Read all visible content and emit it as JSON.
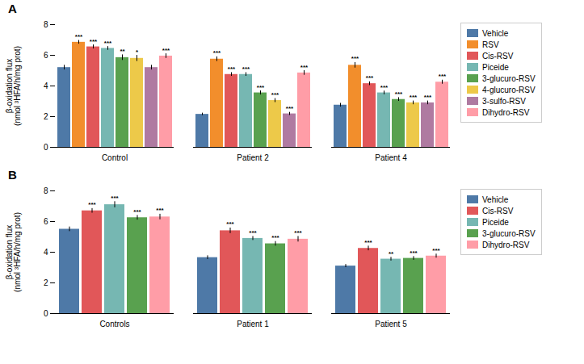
{
  "chart_data": [
    {
      "type": "bar",
      "title": "A",
      "categories": [
        "Control",
        "Patient 2",
        "Patient 4"
      ],
      "series": [
        {
          "name": "Vehicle",
          "values": [
            5.2,
            2.15,
            2.75
          ],
          "errors": [
            0.15,
            0.08,
            0.12
          ],
          "significance": [
            null,
            null,
            null
          ]
        },
        {
          "name": "RSV",
          "values": [
            6.85,
            5.75,
            5.35
          ],
          "errors": [
            0.12,
            0.15,
            0.18
          ],
          "significance": [
            "***",
            "***",
            "***"
          ]
        },
        {
          "name": "Cis-RSV",
          "values": [
            6.55,
            4.75,
            4.15
          ],
          "errors": [
            0.13,
            0.12,
            0.12
          ],
          "significance": [
            "***",
            "***",
            "***"
          ]
        },
        {
          "name": "Piceide",
          "values": [
            6.45,
            4.75,
            3.55
          ],
          "errors": [
            0.12,
            0.12,
            0.12
          ],
          "significance": [
            "***",
            "***",
            "***"
          ]
        },
        {
          "name": "3-glucuro-RSV",
          "values": [
            5.85,
            3.55,
            3.12
          ],
          "errors": [
            0.18,
            0.13,
            0.12
          ],
          "significance": [
            "**",
            "***",
            "***"
          ]
        },
        {
          "name": "4-glucuro-RSV",
          "values": [
            5.8,
            3.05,
            2.9
          ],
          "errors": [
            0.2,
            0.13,
            0.12
          ],
          "significance": [
            "*",
            "***",
            "***"
          ]
        },
        {
          "name": "3-sulfo-RSV",
          "values": [
            5.2,
            2.18,
            2.9
          ],
          "errors": [
            0.15,
            0.1,
            0.12
          ],
          "significance": [
            null,
            "***",
            "***"
          ]
        },
        {
          "name": "Dihydro-RSV",
          "values": [
            5.95,
            4.85,
            4.25
          ],
          "errors": [
            0.15,
            0.15,
            0.13
          ],
          "significance": [
            "***",
            "***",
            "***"
          ]
        }
      ],
      "ylabel": "β-oxidation flux\n(nmol ³HFA/h/mg prot)",
      "ylim": [
        0,
        8
      ],
      "yticks": [
        0,
        2,
        4,
        6,
        8
      ],
      "legend": "right"
    },
    {
      "type": "bar",
      "title": "B",
      "categories": [
        "Controls",
        "Patient 1",
        "Patient 5"
      ],
      "series": [
        {
          "name": "Vehicle",
          "values": [
            5.5,
            3.65,
            3.1
          ],
          "errors": [
            0.15,
            0.12,
            0.1
          ],
          "significance": [
            null,
            null,
            null
          ]
        },
        {
          "name": "Cis-RSV",
          "values": [
            6.7,
            5.4,
            4.25
          ],
          "errors": [
            0.15,
            0.18,
            0.15
          ],
          "significance": [
            "***",
            "***",
            "***"
          ]
        },
        {
          "name": "Piceide",
          "values": [
            7.1,
            4.9,
            3.55
          ],
          "errors": [
            0.2,
            0.13,
            0.12
          ],
          "significance": [
            "***",
            "***",
            "**"
          ]
        },
        {
          "name": "3-glucuro-RSV",
          "values": [
            6.25,
            4.55,
            3.6
          ],
          "errors": [
            0.15,
            0.15,
            0.12
          ],
          "significance": [
            "***",
            "***",
            "***"
          ]
        },
        {
          "name": "Dihydro-RSV",
          "values": [
            6.3,
            4.85,
            3.75
          ],
          "errors": [
            0.18,
            0.18,
            0.13
          ],
          "significance": [
            "***",
            "***",
            "***"
          ]
        }
      ],
      "ylabel": "β-oxidation flux\n(nmol ³HFA/h/mg prot)",
      "ylim": [
        0,
        8
      ],
      "yticks": [
        0,
        2,
        4,
        6,
        8
      ],
      "legend": "right"
    }
  ]
}
